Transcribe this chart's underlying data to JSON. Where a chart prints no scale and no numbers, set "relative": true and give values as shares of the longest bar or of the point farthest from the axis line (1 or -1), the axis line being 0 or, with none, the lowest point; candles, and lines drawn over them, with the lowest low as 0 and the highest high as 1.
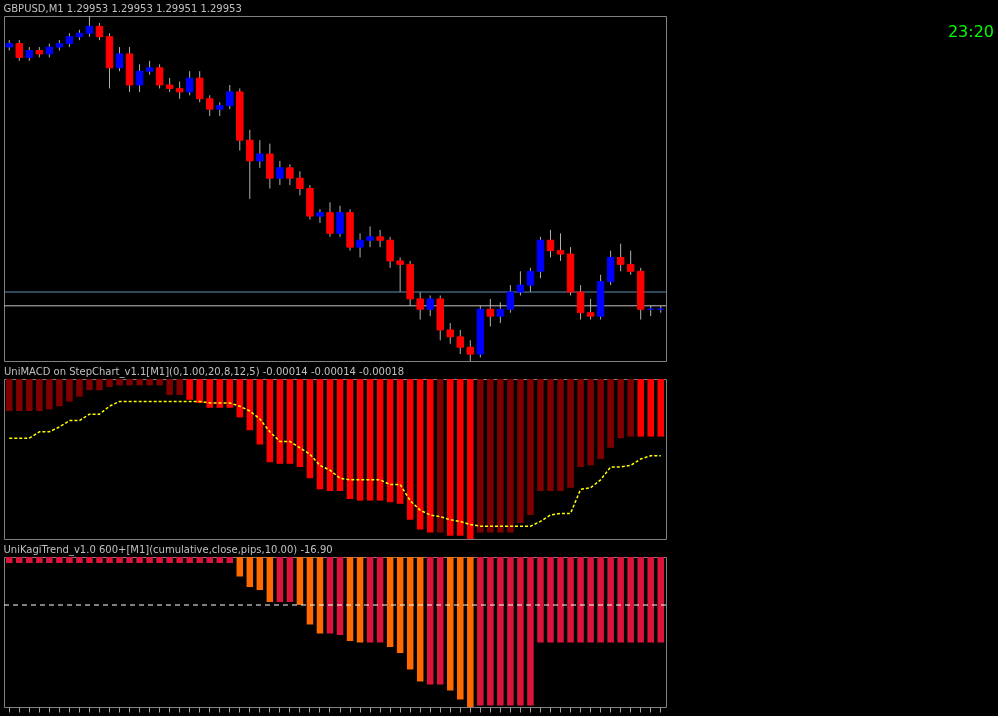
{
  "chart_data": [
    {
      "type": "candlestick",
      "title": "GBPUSD,M1  1.29953 1.29953 1.29951 1.29953",
      "relative": true,
      "tick_labels": false,
      "annotations": [
        "23:20"
      ],
      "categories": [
        null,
        null,
        null,
        null,
        null,
        null,
        null,
        null,
        null,
        null,
        null,
        null,
        null,
        null,
        null,
        null,
        null,
        null,
        null,
        null,
        null,
        null,
        null,
        null,
        null,
        null,
        null,
        null,
        null,
        null,
        null,
        null,
        null,
        null,
        null,
        null,
        null,
        null,
        null,
        null,
        null,
        null,
        null,
        null,
        null,
        null,
        null,
        null,
        null,
        null,
        null,
        null,
        null,
        null,
        null,
        null,
        null,
        null,
        null,
        null,
        null,
        null,
        null,
        null,
        null,
        null
      ],
      "ohlc": [
        [
          0.91,
          0.93,
          0.9,
          0.92
        ],
        [
          0.92,
          0.93,
          0.87,
          0.88
        ],
        [
          0.88,
          0.91,
          0.87,
          0.9
        ],
        [
          0.9,
          0.91,
          0.88,
          0.89
        ],
        [
          0.89,
          0.92,
          0.88,
          0.91
        ],
        [
          0.91,
          0.93,
          0.9,
          0.92
        ],
        [
          0.92,
          0.95,
          0.91,
          0.94
        ],
        [
          0.94,
          0.96,
          0.93,
          0.95
        ],
        [
          0.95,
          1.0,
          0.94,
          0.97
        ],
        [
          0.97,
          0.98,
          0.93,
          0.94
        ],
        [
          0.94,
          0.95,
          0.79,
          0.85
        ],
        [
          0.85,
          0.91,
          0.84,
          0.89
        ],
        [
          0.89,
          0.91,
          0.78,
          0.8
        ],
        [
          0.8,
          0.86,
          0.78,
          0.84
        ],
        [
          0.84,
          0.87,
          0.83,
          0.85
        ],
        [
          0.85,
          0.86,
          0.79,
          0.8
        ],
        [
          0.8,
          0.82,
          0.78,
          0.79
        ],
        [
          0.79,
          0.81,
          0.76,
          0.78
        ],
        [
          0.78,
          0.84,
          0.77,
          0.82
        ],
        [
          0.82,
          0.84,
          0.75,
          0.76
        ],
        [
          0.76,
          0.77,
          0.71,
          0.73
        ],
        [
          0.73,
          0.75,
          0.71,
          0.74
        ],
        [
          0.74,
          0.8,
          0.73,
          0.78
        ],
        [
          0.78,
          0.79,
          0.61,
          0.64
        ],
        [
          0.64,
          0.67,
          0.47,
          0.58
        ],
        [
          0.58,
          0.64,
          0.56,
          0.6
        ],
        [
          0.6,
          0.63,
          0.5,
          0.53
        ],
        [
          0.53,
          0.58,
          0.51,
          0.56
        ],
        [
          0.56,
          0.57,
          0.51,
          0.53
        ],
        [
          0.53,
          0.55,
          0.48,
          0.5
        ],
        [
          0.5,
          0.51,
          0.41,
          0.42
        ],
        [
          0.42,
          0.44,
          0.4,
          0.43
        ],
        [
          0.43,
          0.46,
          0.36,
          0.37
        ],
        [
          0.37,
          0.45,
          0.36,
          0.43
        ],
        [
          0.43,
          0.44,
          0.32,
          0.33
        ],
        [
          0.33,
          0.37,
          0.3,
          0.35
        ],
        [
          0.35,
          0.39,
          0.33,
          0.36
        ],
        [
          0.36,
          0.38,
          0.33,
          0.35
        ],
        [
          0.35,
          0.36,
          0.27,
          0.29
        ],
        [
          0.29,
          0.3,
          0.2,
          0.28
        ],
        [
          0.28,
          0.29,
          0.16,
          0.18
        ],
        [
          0.18,
          0.2,
          0.12,
          0.15
        ],
        [
          0.15,
          0.19,
          0.13,
          0.18
        ],
        [
          0.18,
          0.19,
          0.06,
          0.09
        ],
        [
          0.09,
          0.11,
          0.05,
          0.07
        ],
        [
          0.07,
          0.09,
          0.02,
          0.04
        ],
        [
          0.04,
          0.06,
          0.0,
          0.02
        ],
        [
          0.02,
          0.16,
          0.01,
          0.15
        ],
        [
          0.15,
          0.18,
          0.1,
          0.13
        ],
        [
          0.13,
          0.17,
          0.11,
          0.15
        ],
        [
          0.15,
          0.22,
          0.14,
          0.2
        ],
        [
          0.2,
          0.26,
          0.19,
          0.22
        ],
        [
          0.22,
          0.27,
          0.2,
          0.26
        ],
        [
          0.26,
          0.36,
          0.24,
          0.35
        ],
        [
          0.35,
          0.38,
          0.3,
          0.32
        ],
        [
          0.32,
          0.37,
          0.29,
          0.31
        ],
        [
          0.31,
          0.33,
          0.19,
          0.2
        ],
        [
          0.2,
          0.22,
          0.12,
          0.14
        ],
        [
          0.14,
          0.18,
          0.12,
          0.13
        ],
        [
          0.13,
          0.25,
          0.12,
          0.23
        ],
        [
          0.23,
          0.32,
          0.22,
          0.3
        ],
        [
          0.3,
          0.34,
          0.26,
          0.28
        ],
        [
          0.28,
          0.32,
          0.25,
          0.26
        ],
        [
          0.26,
          0.27,
          0.12,
          0.15
        ],
        [
          0.15,
          0.16,
          0.13,
          0.15
        ],
        [
          0.15,
          0.16,
          0.14,
          0.15
        ]
      ],
      "colors": [
        "#0000ff",
        "#ff0000",
        "#0000ff",
        "#ff0000",
        "#0000ff",
        "#0000ff",
        "#0000ff",
        "#0000ff",
        "#0000ff",
        "#ff0000",
        "#ff0000",
        "#0000ff",
        "#ff0000",
        "#0000ff",
        "#0000ff",
        "#ff0000",
        "#ff0000",
        "#ff0000",
        "#0000ff",
        "#ff0000",
        "#ff0000",
        "#0000ff",
        "#0000ff",
        "#ff0000",
        "#ff0000",
        "#0000ff",
        "#ff0000",
        "#0000ff",
        "#ff0000",
        "#ff0000",
        "#ff0000",
        "#0000ff",
        "#ff0000",
        "#0000ff",
        "#ff0000",
        "#0000ff",
        "#0000ff",
        "#ff0000",
        "#ff0000",
        "#ff0000",
        "#ff0000",
        "#ff0000",
        "#0000ff",
        "#ff0000",
        "#ff0000",
        "#ff0000",
        "#ff0000",
        "#0000ff",
        "#ff0000",
        "#0000ff",
        "#0000ff",
        "#0000ff",
        "#0000ff",
        "#0000ff",
        "#ff0000",
        "#ff0000",
        "#ff0000",
        "#ff0000",
        "#ff0000",
        "#0000ff",
        "#0000ff",
        "#ff0000",
        "#ff0000",
        "#ff0000",
        "#0000ff",
        "#0000ff"
      ],
      "ref_lines": [
        {
          "axis": "y",
          "value": 0.2,
          "color": "#5f8fb0"
        },
        {
          "axis": "y",
          "value": 0.16,
          "color": "#c0c0c0"
        }
      ]
    },
    {
      "type": "bar",
      "title": "UniMACD on StepChart_v1.1[M1](0,1.00,20,8,12,5) -0.00014 -0.00014 -0.00018",
      "relative": true,
      "tick_labels": false,
      "categories": [
        null,
        null,
        null,
        null,
        null,
        null,
        null,
        null,
        null,
        null,
        null,
        null,
        null,
        null,
        null,
        null,
        null,
        null,
        null,
        null,
        null,
        null,
        null,
        null,
        null,
        null,
        null,
        null,
        null,
        null,
        null,
        null,
        null,
        null,
        null,
        null,
        null,
        null,
        null,
        null,
        null,
        null,
        null,
        null,
        null,
        null,
        null,
        null,
        null,
        null,
        null,
        null,
        null,
        null,
        null,
        null,
        null,
        null,
        null,
        null,
        null,
        null,
        null,
        null,
        null,
        null
      ],
      "series": [
        {
          "type": "bar",
          "values": [
            -0.2,
            -0.2,
            -0.2,
            -0.2,
            -0.19,
            -0.17,
            -0.14,
            -0.11,
            -0.07,
            -0.07,
            -0.05,
            -0.04,
            -0.04,
            -0.04,
            -0.04,
            -0.04,
            -0.1,
            -0.1,
            -0.13,
            -0.15,
            -0.18,
            -0.18,
            -0.18,
            -0.24,
            -0.32,
            -0.41,
            -0.52,
            -0.53,
            -0.53,
            -0.55,
            -0.62,
            -0.69,
            -0.7,
            -0.7,
            -0.75,
            -0.76,
            -0.76,
            -0.76,
            -0.77,
            -0.78,
            -0.88,
            -0.94,
            -0.96,
            -0.96,
            -0.98,
            -0.98,
            -1.0,
            -0.96,
            -0.96,
            -0.96,
            -0.96,
            -0.9,
            -0.85,
            -0.7,
            -0.7,
            -0.7,
            -0.68,
            -0.55,
            -0.54,
            -0.5,
            -0.43,
            -0.37,
            -0.36,
            -0.36,
            -0.36,
            -0.36
          ],
          "colors": [
            "#800000",
            "#800000",
            "#800000",
            "#800000",
            "#800000",
            "#800000",
            "#800000",
            "#800000",
            "#800000",
            "#800000",
            "#800000",
            "#800000",
            "#800000",
            "#800000",
            "#800000",
            "#800000",
            "#800000",
            "#800000",
            "#ff0000",
            "#ff0000",
            "#ff0000",
            "#ff0000",
            "#ff0000",
            "#ff0000",
            "#ff0000",
            "#ff0000",
            "#ff0000",
            "#ff0000",
            "#ff0000",
            "#ff0000",
            "#ff0000",
            "#ff0000",
            "#ff0000",
            "#ff0000",
            "#ff0000",
            "#ff0000",
            "#ff0000",
            "#ff0000",
            "#ff0000",
            "#ff0000",
            "#ff0000",
            "#ff0000",
            "#ff0000",
            "#800000",
            "#ff0000",
            "#ff0000",
            "#ff0000",
            "#800000",
            "#800000",
            "#800000",
            "#800000",
            "#800000",
            "#800000",
            "#800000",
            "#800000",
            "#800000",
            "#800000",
            "#800000",
            "#800000",
            "#800000",
            "#800000",
            "#800000",
            "#800000",
            "#ff0000",
            "#ff0000",
            "#ff0000"
          ]
        },
        {
          "type": "line",
          "color": "#ffff00",
          "line_style": "dotted",
          "values": [
            -0.37,
            -0.37,
            -0.37,
            -0.33,
            -0.33,
            -0.3,
            -0.26,
            -0.26,
            -0.22,
            -0.22,
            -0.17,
            -0.14,
            -0.14,
            -0.14,
            -0.14,
            -0.14,
            -0.14,
            -0.14,
            -0.14,
            -0.14,
            -0.15,
            -0.15,
            -0.15,
            -0.17,
            -0.2,
            -0.25,
            -0.33,
            -0.39,
            -0.39,
            -0.43,
            -0.47,
            -0.54,
            -0.57,
            -0.62,
            -0.63,
            -0.63,
            -0.63,
            -0.63,
            -0.66,
            -0.66,
            -0.76,
            -0.82,
            -0.85,
            -0.86,
            -0.88,
            -0.89,
            -0.91,
            -0.92,
            -0.92,
            -0.92,
            -0.92,
            -0.92,
            -0.92,
            -0.89,
            -0.85,
            -0.84,
            -0.84,
            -0.69,
            -0.68,
            -0.63,
            -0.55,
            -0.55,
            -0.54,
            -0.5,
            -0.48,
            -0.48
          ]
        }
      ]
    },
    {
      "type": "bar",
      "title": "UniKagiTrend_v1.0 600+[M1](cumulative,close,pips,10.00) -16.90",
      "relative": true,
      "tick_labels": false,
      "categories": [
        null,
        null,
        null,
        null,
        null,
        null,
        null,
        null,
        null,
        null,
        null,
        null,
        null,
        null,
        null,
        null,
        null,
        null,
        null,
        null,
        null,
        null,
        null,
        null,
        null,
        null,
        null,
        null,
        null,
        null,
        null,
        null,
        null,
        null,
        null,
        null,
        null,
        null,
        null,
        null,
        null,
        null,
        null,
        null,
        null,
        null,
        null,
        null,
        null,
        null,
        null,
        null,
        null,
        null,
        null,
        null,
        null,
        null,
        null,
        null,
        null,
        null,
        null,
        null,
        null,
        null
      ],
      "values": [
        -0.04,
        -0.04,
        -0.04,
        -0.04,
        -0.04,
        -0.04,
        -0.04,
        -0.04,
        -0.04,
        -0.04,
        -0.04,
        -0.04,
        -0.04,
        -0.04,
        -0.04,
        -0.04,
        -0.04,
        -0.04,
        -0.04,
        -0.04,
        -0.04,
        -0.04,
        -0.04,
        -0.13,
        -0.2,
        -0.22,
        -0.3,
        -0.3,
        -0.3,
        -0.32,
        -0.45,
        -0.51,
        -0.51,
        -0.52,
        -0.56,
        -0.57,
        -0.57,
        -0.57,
        -0.6,
        -0.64,
        -0.75,
        -0.83,
        -0.85,
        -0.85,
        -0.89,
        -0.95,
        -1.0,
        -0.99,
        -0.99,
        -0.99,
        -0.99,
        -0.99,
        -0.99,
        -0.57,
        -0.57,
        -0.57,
        -0.57,
        -0.57,
        -0.57,
        -0.57,
        -0.57,
        -0.57,
        -0.57,
        -0.57,
        -0.57,
        -0.57
      ],
      "colors": [
        "#dc143c",
        "#dc143c",
        "#dc143c",
        "#dc143c",
        "#dc143c",
        "#dc143c",
        "#dc143c",
        "#dc143c",
        "#dc143c",
        "#dc143c",
        "#dc143c",
        "#dc143c",
        "#dc143c",
        "#dc143c",
        "#dc143c",
        "#dc143c",
        "#dc143c",
        "#dc143c",
        "#dc143c",
        "#dc143c",
        "#dc143c",
        "#dc143c",
        "#dc143c",
        "#ff6a00",
        "#ff6a00",
        "#ff6a00",
        "#ff6a00",
        "#dc143c",
        "#dc143c",
        "#ff6a00",
        "#ff6a00",
        "#ff6a00",
        "#dc143c",
        "#dc143c",
        "#ff6a00",
        "#ff6a00",
        "#dc143c",
        "#dc143c",
        "#ff6a00",
        "#ff6a00",
        "#ff6a00",
        "#ff6a00",
        "#dc143c",
        "#dc143c",
        "#ff6a00",
        "#ff6a00",
        "#ff6a00",
        "#dc143c",
        "#dc143c",
        "#dc143c",
        "#dc143c",
        "#dc143c",
        "#dc143c",
        "#dc143c",
        "#dc143c",
        "#dc143c",
        "#dc143c",
        "#dc143c",
        "#dc143c",
        "#dc143c",
        "#dc143c",
        "#dc143c",
        "#dc143c",
        "#dc143c",
        "#dc143c",
        "#dc143c"
      ],
      "ref_lines": [
        {
          "axis": "y",
          "value": -0.32,
          "color": "#ffffff",
          "line_style": "dashed"
        }
      ]
    }
  ]
}
